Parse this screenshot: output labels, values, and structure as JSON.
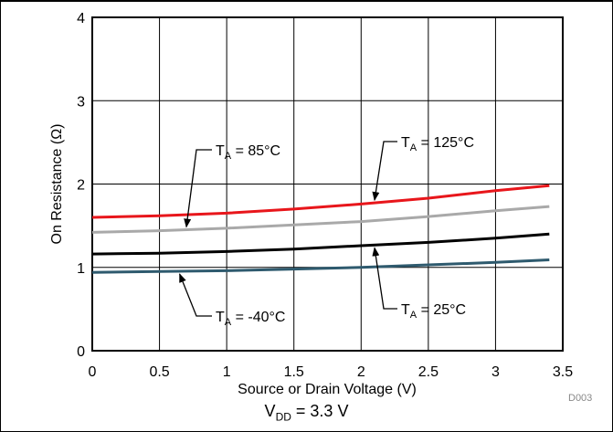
{
  "chart_data": {
    "type": "line",
    "xlabel": "Source or Drain Voltage (V)",
    "ylabel": "On Resistance (Ω)",
    "xlim": [
      0,
      3.5
    ],
    "ylim": [
      0,
      4
    ],
    "x_ticks": [
      "0",
      "0.5",
      "1",
      "1.5",
      "2",
      "2.5",
      "3",
      "3.5"
    ],
    "y_ticks": [
      "0",
      "1",
      "2",
      "3",
      "4"
    ],
    "grid": true,
    "series": [
      {
        "label_main": "T",
        "label_sub": "A",
        "label_rest": " = 125°C",
        "color": "#e8161b",
        "x": [
          0,
          0.5,
          1,
          1.5,
          2,
          2.5,
          3,
          3.4
        ],
        "y": [
          1.6,
          1.62,
          1.65,
          1.7,
          1.76,
          1.83,
          1.92,
          1.98
        ]
      },
      {
        "label_main": "T",
        "label_sub": "A",
        "label_rest": " = 85°C",
        "color": "#a9a9a9",
        "x": [
          0,
          0.5,
          1,
          1.5,
          2,
          2.5,
          3,
          3.4
        ],
        "y": [
          1.42,
          1.44,
          1.47,
          1.51,
          1.55,
          1.61,
          1.68,
          1.73
        ]
      },
      {
        "label_main": "T",
        "label_sub": "A",
        "label_rest": " = 25°C",
        "color": "#000000",
        "x": [
          0,
          0.5,
          1,
          1.5,
          2,
          2.5,
          3,
          3.4
        ],
        "y": [
          1.16,
          1.17,
          1.19,
          1.22,
          1.26,
          1.3,
          1.35,
          1.4
        ]
      },
      {
        "label_main": "T",
        "label_sub": "A",
        "label_rest": " = -40°C",
        "color": "#2e5a6e",
        "x": [
          0,
          0.5,
          1,
          1.5,
          2,
          2.5,
          3,
          3.4
        ],
        "y": [
          0.94,
          0.95,
          0.96,
          0.98,
          1.0,
          1.03,
          1.06,
          1.09
        ]
      }
    ]
  },
  "figure_id": "D003",
  "caption": {
    "main": "V",
    "sub": "DD",
    "rest": " = 3.3 V"
  }
}
